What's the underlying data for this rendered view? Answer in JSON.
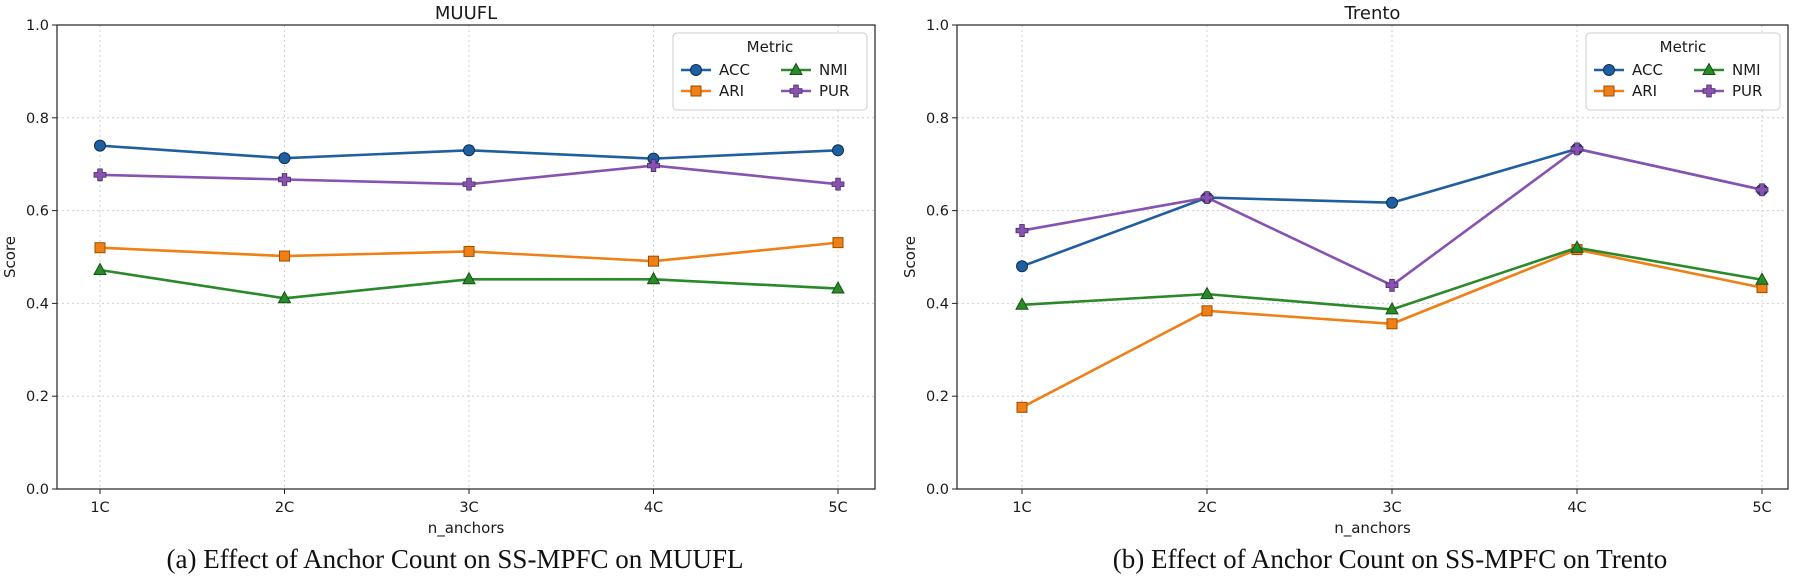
{
  "chart_data": [
    {
      "type": "line",
      "title": "MUUFL",
      "caption": "(a) Effect of Anchor Count on SS-MPFC on MUUFL",
      "xlabel": "n_anchors",
      "ylabel": "Score",
      "categories": [
        "1C",
        "2C",
        "3C",
        "4C",
        "5C"
      ],
      "ylim": [
        0.0,
        1.0
      ],
      "yticks": [
        "0.0",
        "0.2",
        "0.4",
        "0.6",
        "0.8",
        "1.0"
      ],
      "grid": true,
      "legend": {
        "title": "Metric",
        "position": "top-right"
      },
      "series": [
        {
          "name": "ACC",
          "color": "#1f5fa0",
          "marker": "circle",
          "values": [
            0.74,
            0.713,
            0.73,
            0.712,
            0.73
          ]
        },
        {
          "name": "ARI",
          "color": "#f07f16",
          "marker": "square",
          "values": [
            0.52,
            0.502,
            0.512,
            0.491,
            0.531
          ]
        },
        {
          "name": "NMI",
          "color": "#2a8a2a",
          "marker": "triangle",
          "values": [
            0.472,
            0.411,
            0.452,
            0.452,
            0.432
          ]
        },
        {
          "name": "PUR",
          "color": "#8752b0",
          "marker": "plus",
          "values": [
            0.677,
            0.667,
            0.657,
            0.697,
            0.657
          ]
        }
      ]
    },
    {
      "type": "line",
      "title": "Trento",
      "caption": "(b) Effect of Anchor Count on SS-MPFC on Trento",
      "xlabel": "n_anchors",
      "ylabel": "Score",
      "categories": [
        "1C",
        "2C",
        "3C",
        "4C",
        "5C"
      ],
      "ylim": [
        0.0,
        1.0
      ],
      "yticks": [
        "0.0",
        "0.2",
        "0.4",
        "0.6",
        "0.8",
        "1.0"
      ],
      "grid": true,
      "legend": {
        "title": "Metric",
        "position": "top-right"
      },
      "series": [
        {
          "name": "ACC",
          "color": "#1f5fa0",
          "marker": "circle",
          "values": [
            0.48,
            0.628,
            0.617,
            0.733,
            0.645
          ]
        },
        {
          "name": "ARI",
          "color": "#f07f16",
          "marker": "square",
          "values": [
            0.176,
            0.384,
            0.356,
            0.516,
            0.434
          ]
        },
        {
          "name": "NMI",
          "color": "#2a8a2a",
          "marker": "triangle",
          "values": [
            0.397,
            0.42,
            0.387,
            0.52,
            0.451
          ]
        },
        {
          "name": "PUR",
          "color": "#8752b0",
          "marker": "plus",
          "values": [
            0.557,
            0.628,
            0.439,
            0.733,
            0.645
          ]
        }
      ]
    }
  ]
}
